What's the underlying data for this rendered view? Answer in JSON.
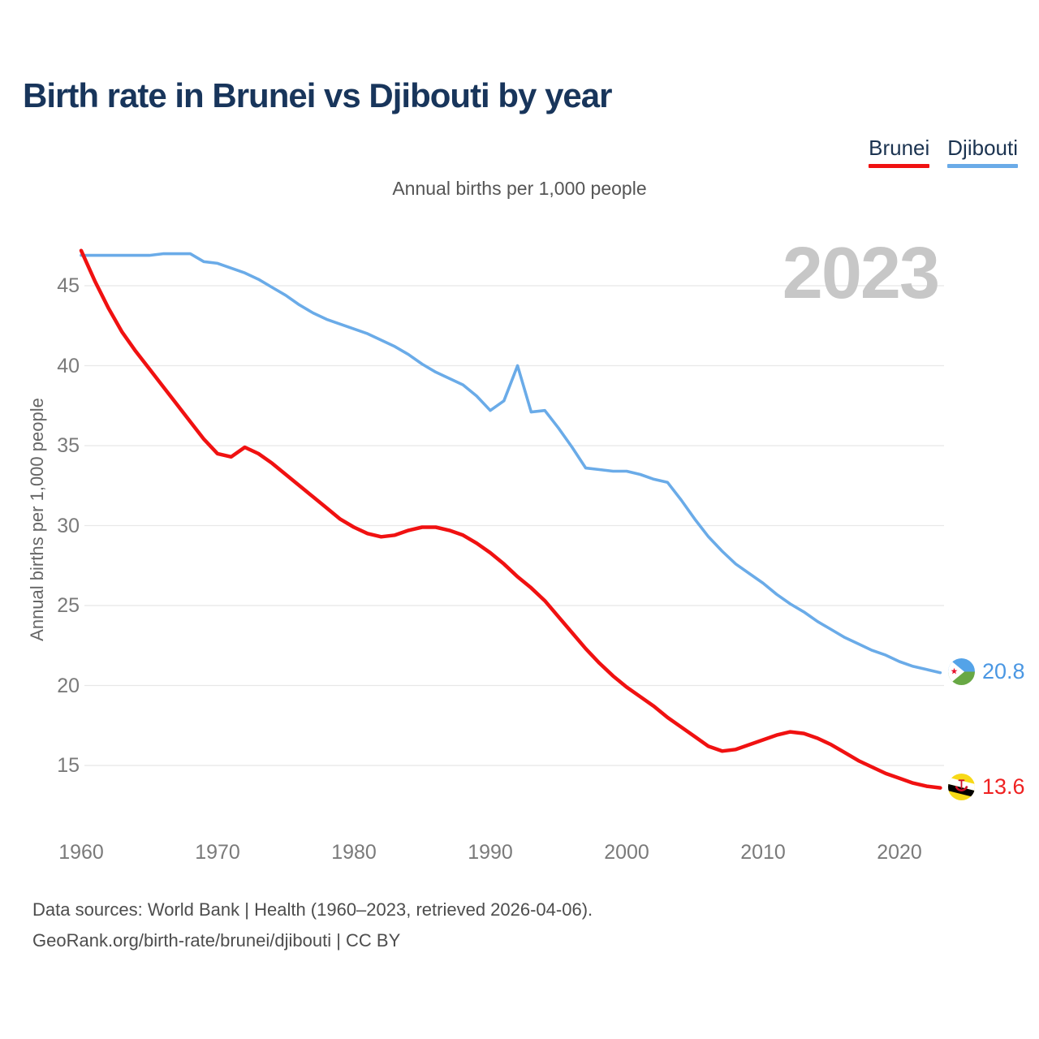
{
  "header": {
    "title": "Birth rate in Brunei vs Djibouti by year",
    "subtitle": "Annual births per 1,000 people"
  },
  "watermark": "2023",
  "legend": [
    {
      "label": "Brunei",
      "color": "#f01111"
    },
    {
      "label": "Djibouti",
      "color": "#6aabe8"
    }
  ],
  "y_axis": {
    "title": "Annual births per 1,000 people",
    "ticks": [
      45,
      40,
      35,
      30,
      25,
      20,
      15
    ]
  },
  "x_axis": {
    "ticks": [
      1960,
      1970,
      1980,
      1990,
      2000,
      2010,
      2020
    ]
  },
  "end_labels": {
    "djibouti": "20.8",
    "brunei": "13.6"
  },
  "icons": {
    "brunei_flag": "brunei-flag-icon",
    "djibouti_flag": "djibouti-flag-icon"
  },
  "footer": {
    "line1": "Data sources: World Bank | Health (1960–2023, retrieved 2026-04-06).",
    "line2": "GeoRank.org/birth-rate/brunei/djibouti | CC BY"
  },
  "chart_data": {
    "type": "line",
    "title": "Birth rate in Brunei vs Djibouti by year",
    "subtitle": "Annual births per 1,000 people",
    "ylabel": "Annual births per 1,000 people",
    "ylim": [
      13,
      48
    ],
    "xlim": [
      1960,
      2023
    ],
    "grid": "horizontal",
    "legend_position": "top-right",
    "x": [
      1960,
      1961,
      1962,
      1963,
      1964,
      1965,
      1966,
      1967,
      1968,
      1969,
      1970,
      1971,
      1972,
      1973,
      1974,
      1975,
      1976,
      1977,
      1978,
      1979,
      1980,
      1981,
      1982,
      1983,
      1984,
      1985,
      1986,
      1987,
      1988,
      1989,
      1990,
      1991,
      1992,
      1993,
      1994,
      1995,
      1996,
      1997,
      1998,
      1999,
      2000,
      2001,
      2002,
      2003,
      2004,
      2005,
      2006,
      2007,
      2008,
      2009,
      2010,
      2011,
      2012,
      2013,
      2014,
      2015,
      2016,
      2017,
      2018,
      2019,
      2020,
      2021,
      2022,
      2023
    ],
    "series": [
      {
        "name": "Brunei",
        "color": "#f01111",
        "final_value": 13.6,
        "values": [
          47.2,
          45.3,
          43.6,
          42.1,
          40.9,
          39.8,
          38.7,
          37.6,
          36.5,
          35.4,
          34.5,
          34.3,
          34.9,
          34.5,
          33.9,
          33.2,
          32.5,
          31.8,
          31.1,
          30.4,
          29.9,
          29.5,
          29.3,
          29.4,
          29.7,
          29.9,
          29.9,
          29.7,
          29.4,
          28.9,
          28.3,
          27.6,
          26.8,
          26.1,
          25.3,
          24.3,
          23.3,
          22.3,
          21.4,
          20.6,
          19.9,
          19.3,
          18.7,
          18.0,
          17.4,
          16.8,
          16.2,
          15.9,
          16.0,
          16.3,
          16.6,
          16.9,
          17.1,
          17.0,
          16.7,
          16.3,
          15.8,
          15.3,
          14.9,
          14.5,
          14.2,
          13.9,
          13.7,
          13.6
        ]
      },
      {
        "name": "Djibouti",
        "color": "#6aabe8",
        "final_value": 20.8,
        "values": [
          46.9,
          46.9,
          46.9,
          46.9,
          46.9,
          46.9,
          47.0,
          47.0,
          47.0,
          46.5,
          46.4,
          46.1,
          45.8,
          45.4,
          44.9,
          44.4,
          43.8,
          43.3,
          42.9,
          42.6,
          42.3,
          42.0,
          41.6,
          41.2,
          40.7,
          40.1,
          39.6,
          39.2,
          38.8,
          38.1,
          37.2,
          37.8,
          40.0,
          37.1,
          37.2,
          36.1,
          34.9,
          33.6,
          33.5,
          33.4,
          33.4,
          33.2,
          32.9,
          32.7,
          31.6,
          30.4,
          29.3,
          28.4,
          27.6,
          27.0,
          26.4,
          25.7,
          25.1,
          24.6,
          24.0,
          23.5,
          23.0,
          22.6,
          22.2,
          21.9,
          21.5,
          21.2,
          21.0,
          20.8
        ]
      }
    ]
  }
}
